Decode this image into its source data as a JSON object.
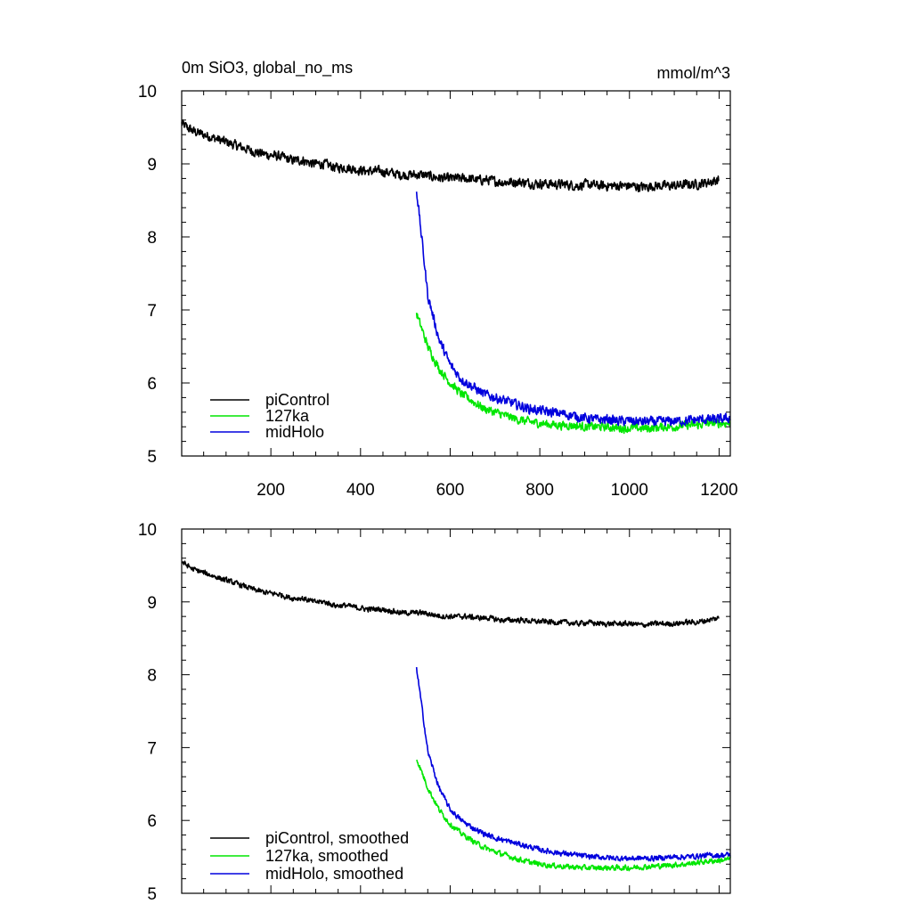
{
  "header": {
    "title_left": "0m SiO3, global_no_ms",
    "title_right": "mmol/m^3"
  },
  "chart_data": [
    {
      "type": "line",
      "panel": "top",
      "xlim": [
        1,
        1225
      ],
      "ylim": [
        5,
        10
      ],
      "xticks": [
        200,
        400,
        600,
        800,
        1000,
        1200
      ],
      "xtick_labels": [
        "200",
        "400",
        "600",
        "800",
        "1000",
        "1200"
      ],
      "yticks": [
        5,
        6,
        7,
        8,
        9,
        10
      ],
      "ytick_labels": [
        "5",
        "6",
        "7",
        "8",
        "9",
        "10"
      ],
      "grid": false,
      "legend_position": "bottom-left",
      "series": [
        {
          "name": "piControl",
          "color": "#000000",
          "x_start": 1,
          "x_end": 1200,
          "values": [
            9.55,
            9.45,
            9.4,
            9.35,
            9.3,
            9.25,
            9.2,
            9.15,
            9.12,
            9.1,
            9.05,
            9.05,
            9.0,
            9.0,
            8.95,
            8.95,
            8.92,
            8.9,
            8.9,
            8.88,
            8.85,
            8.85,
            8.85,
            8.82,
            8.8,
            8.8,
            8.8,
            8.78,
            8.78,
            8.75,
            8.75,
            8.75,
            8.73,
            8.73,
            8.72,
            8.72,
            8.7,
            8.72,
            8.7,
            8.7,
            8.7,
            8.7,
            8.68,
            8.7,
            8.7,
            8.7,
            8.72,
            8.72,
            8.75,
            8.78
          ],
          "noise": 0.09
        },
        {
          "name": "127ka",
          "color": "#00e600",
          "x_start": 525,
          "x_end": 1225,
          "values": [
            6.95,
            6.5,
            6.2,
            6.0,
            5.85,
            5.75,
            5.65,
            5.6,
            5.55,
            5.5,
            5.47,
            5.45,
            5.43,
            5.42,
            5.42,
            5.4,
            5.4,
            5.4,
            5.38,
            5.38,
            5.38,
            5.38,
            5.4,
            5.4,
            5.42,
            5.42,
            5.45,
            5.45,
            5.45
          ],
          "noise": 0.08
        },
        {
          "name": "midHolo",
          "color": "#0000dd",
          "x_start": 525,
          "x_end": 1225,
          "values": [
            8.65,
            7.2,
            6.6,
            6.25,
            6.05,
            5.95,
            5.85,
            5.8,
            5.75,
            5.7,
            5.65,
            5.62,
            5.6,
            5.58,
            5.55,
            5.52,
            5.5,
            5.5,
            5.48,
            5.48,
            5.47,
            5.47,
            5.47,
            5.48,
            5.48,
            5.5,
            5.5,
            5.5,
            5.52
          ],
          "noise": 0.09
        }
      ]
    },
    {
      "type": "line",
      "panel": "bottom",
      "xlim": [
        1,
        1225
      ],
      "ylim": [
        5,
        10
      ],
      "xticks": [
        200,
        400,
        600,
        800,
        1000,
        1200
      ],
      "yticks": [
        5,
        6,
        7,
        8,
        9,
        10
      ],
      "ytick_labels": [
        "5",
        "6",
        "7",
        "8",
        "9",
        "10"
      ],
      "grid": false,
      "legend_position": "bottom-left",
      "series": [
        {
          "name": "piControl, smoothed",
          "color": "#000000",
          "x_start": 1,
          "x_end": 1200,
          "values": [
            9.55,
            9.45,
            9.4,
            9.35,
            9.3,
            9.25,
            9.2,
            9.15,
            9.12,
            9.1,
            9.05,
            9.05,
            9.0,
            9.0,
            8.95,
            8.95,
            8.92,
            8.9,
            8.9,
            8.88,
            8.85,
            8.85,
            8.85,
            8.82,
            8.8,
            8.8,
            8.8,
            8.78,
            8.78,
            8.75,
            8.75,
            8.75,
            8.73,
            8.73,
            8.72,
            8.72,
            8.7,
            8.72,
            8.7,
            8.7,
            8.7,
            8.7,
            8.68,
            8.7,
            8.7,
            8.7,
            8.72,
            8.72,
            8.75,
            8.78
          ],
          "noise": 0.05
        },
        {
          "name": "127ka, smoothed",
          "color": "#00e600",
          "x_start": 525,
          "x_end": 1225,
          "values": [
            6.85,
            6.45,
            6.15,
            5.95,
            5.82,
            5.72,
            5.63,
            5.57,
            5.52,
            5.47,
            5.43,
            5.4,
            5.38,
            5.37,
            5.36,
            5.35,
            5.35,
            5.35,
            5.35,
            5.35,
            5.36,
            5.37,
            5.38,
            5.39,
            5.4,
            5.42,
            5.44,
            5.45,
            5.47
          ],
          "noise": 0.05
        },
        {
          "name": "midHolo, smoothed",
          "color": "#0000dd",
          "x_start": 525,
          "x_end": 1225,
          "values": [
            8.1,
            6.95,
            6.45,
            6.15,
            6.0,
            5.9,
            5.82,
            5.76,
            5.72,
            5.68,
            5.64,
            5.6,
            5.57,
            5.55,
            5.53,
            5.51,
            5.5,
            5.49,
            5.48,
            5.48,
            5.48,
            5.48,
            5.49,
            5.5,
            5.5,
            5.51,
            5.52,
            5.52,
            5.53
          ],
          "noise": 0.05
        }
      ]
    }
  ]
}
